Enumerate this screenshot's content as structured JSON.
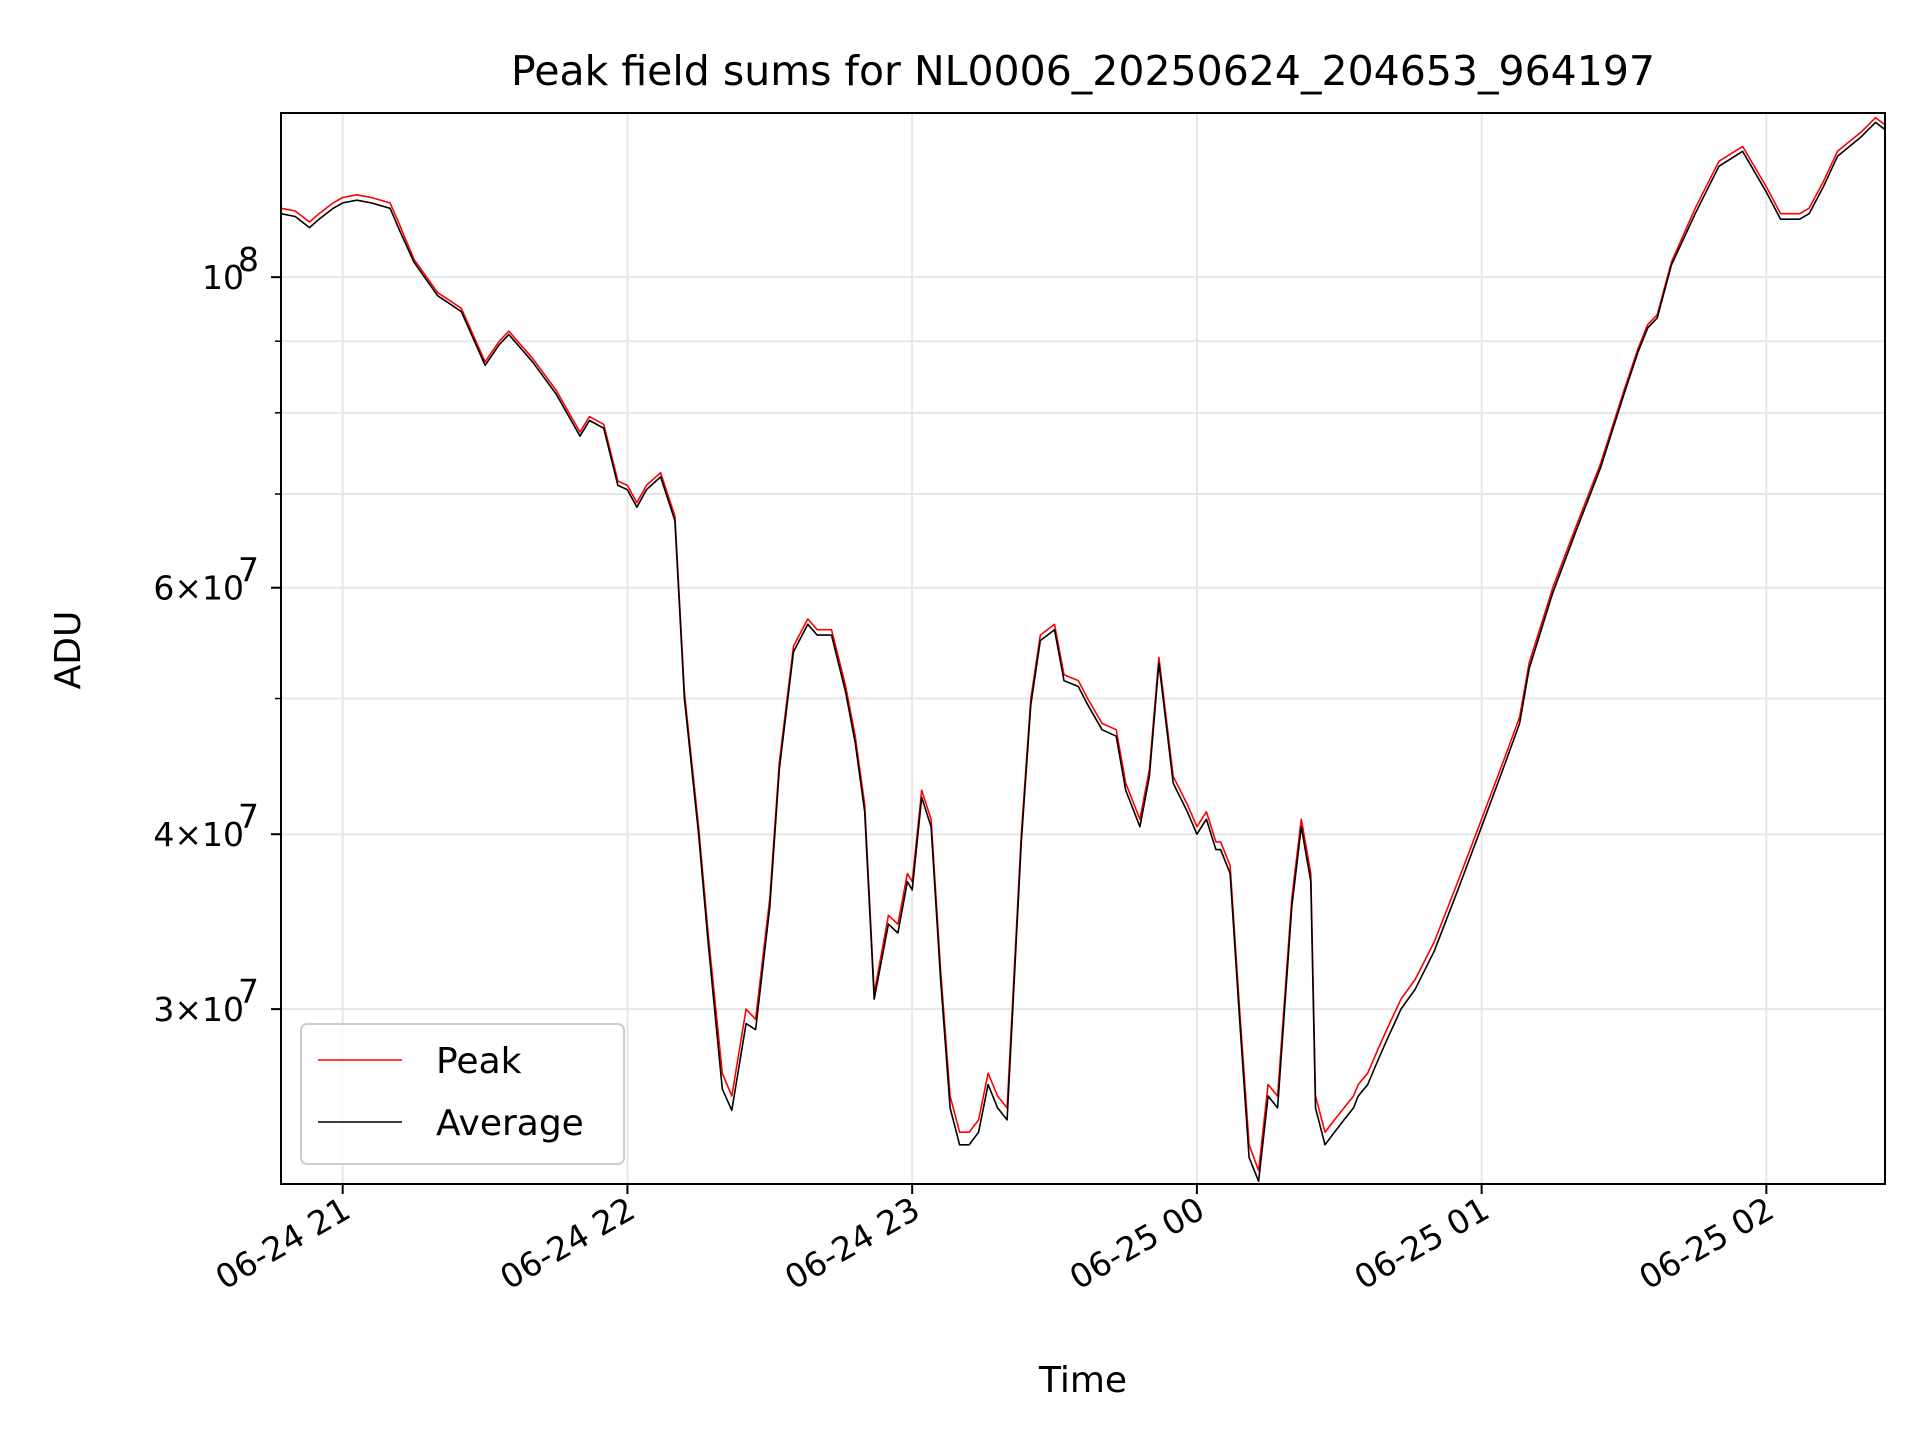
{
  "chart_data": {
    "type": "line",
    "title": "Peak field sums for NL0006_20250624_204653_964197",
    "xlabel": "Time",
    "ylabel": "ADU",
    "y_scale": "log",
    "xlim": [
      "2025-06-24 20:47",
      "2025-06-25 02:25"
    ],
    "ylim": [
      22500000,
      131000000
    ],
    "x_ticks": [
      {
        "value": "2025-06-24 21:00",
        "label": "06-24 21"
      },
      {
        "value": "2025-06-24 22:00",
        "label": "06-24 22"
      },
      {
        "value": "2025-06-24 23:00",
        "label": "06-24 23"
      },
      {
        "value": "2025-06-25 00:00",
        "label": "06-25 00"
      },
      {
        "value": "2025-06-25 01:00",
        "label": "06-25 01"
      },
      {
        "value": "2025-06-25 02:00",
        "label": "06-25 02"
      }
    ],
    "y_major_ticks": [
      {
        "value": 30000000,
        "base": "3",
        "exp": "7"
      },
      {
        "value": 40000000,
        "base": "4",
        "exp": "7"
      },
      {
        "value": 60000000,
        "base": "6",
        "exp": "7"
      },
      {
        "value": 100000000,
        "base": "",
        "exp": "8"
      }
    ],
    "y_minor_ticks": [
      50000000,
      70000000,
      80000000,
      90000000
    ],
    "grid": true,
    "legend_position": "lower-left",
    "series": [
      {
        "name": "Peak",
        "color": "#ff0000",
        "x": [
          "2025-06-24 20:47",
          "2025-06-24 20:50",
          "2025-06-24 20:53",
          "2025-06-24 20:55",
          "2025-06-24 20:58",
          "2025-06-24 21:00",
          "2025-06-24 21:03",
          "2025-06-24 21:06",
          "2025-06-24 21:10",
          "2025-06-24 21:12",
          "2025-06-24 21:15",
          "2025-06-24 21:20",
          "2025-06-24 21:25",
          "2025-06-24 21:30",
          "2025-06-24 21:33",
          "2025-06-24 21:35",
          "2025-06-24 21:40",
          "2025-06-24 21:45",
          "2025-06-24 21:50",
          "2025-06-24 21:52",
          "2025-06-24 21:55",
          "2025-06-24 21:58",
          "2025-06-24 22:00",
          "2025-06-24 22:02",
          "2025-06-24 22:04",
          "2025-06-24 22:07",
          "2025-06-24 22:10",
          "2025-06-24 22:12",
          "2025-06-24 22:15",
          "2025-06-24 22:17",
          "2025-06-24 22:20",
          "2025-06-24 22:22",
          "2025-06-24 22:25",
          "2025-06-24 22:27",
          "2025-06-24 22:30",
          "2025-06-24 22:32",
          "2025-06-24 22:35",
          "2025-06-24 22:38",
          "2025-06-24 22:40",
          "2025-06-24 22:43",
          "2025-06-24 22:46",
          "2025-06-24 22:48",
          "2025-06-24 22:50",
          "2025-06-24 22:52",
          "2025-06-24 22:55",
          "2025-06-24 22:57",
          "2025-06-24 22:59",
          "2025-06-24 23:00",
          "2025-06-24 23:02",
          "2025-06-24 23:04",
          "2025-06-24 23:06",
          "2025-06-24 23:08",
          "2025-06-24 23:10",
          "2025-06-24 23:12",
          "2025-06-24 23:14",
          "2025-06-24 23:16",
          "2025-06-24 23:18",
          "2025-06-24 23:20",
          "2025-06-24 23:23",
          "2025-06-24 23:25",
          "2025-06-24 23:27",
          "2025-06-24 23:30",
          "2025-06-24 23:32",
          "2025-06-24 23:35",
          "2025-06-24 23:37",
          "2025-06-24 23:40",
          "2025-06-24 23:43",
          "2025-06-24 23:45",
          "2025-06-24 23:48",
          "2025-06-24 23:50",
          "2025-06-24 23:52",
          "2025-06-24 23:55",
          "2025-06-24 23:58",
          "2025-06-25 00:00",
          "2025-06-25 00:02",
          "2025-06-25 00:04",
          "2025-06-25 00:05",
          "2025-06-25 00:07",
          "2025-06-25 00:09",
          "2025-06-25 00:11",
          "2025-06-25 00:13",
          "2025-06-25 00:15",
          "2025-06-25 00:17",
          "2025-06-25 00:20",
          "2025-06-25 00:22",
          "2025-06-25 00:24",
          "2025-06-25 00:25",
          "2025-06-25 00:27",
          "2025-06-25 00:29",
          "2025-06-25 00:31",
          "2025-06-25 00:33",
          "2025-06-25 00:34",
          "2025-06-25 00:36",
          "2025-06-25 00:38",
          "2025-06-25 00:40",
          "2025-06-25 00:43",
          "2025-06-25 00:46",
          "2025-06-25 00:50",
          "2025-06-25 00:55",
          "2025-06-25 01:00",
          "2025-06-25 01:05",
          "2025-06-25 01:08",
          "2025-06-25 01:10",
          "2025-06-25 01:15",
          "2025-06-25 01:20",
          "2025-06-25 01:25",
          "2025-06-25 01:30",
          "2025-06-25 01:33",
          "2025-06-25 01:35",
          "2025-06-25 01:37",
          "2025-06-25 01:40",
          "2025-06-25 01:45",
          "2025-06-25 01:50",
          "2025-06-25 01:55",
          "2025-06-25 02:00",
          "2025-06-25 02:03",
          "2025-06-25 02:07",
          "2025-06-25 02:09",
          "2025-06-25 02:12",
          "2025-06-25 02:15",
          "2025-06-25 02:20",
          "2025-06-25 02:23",
          "2025-06-25 02:25"
        ],
        "y": [
          112000000,
          111500000,
          109500000,
          111000000,
          113000000,
          114000000,
          114500000,
          114000000,
          113000000,
          109000000,
          103000000,
          97500000,
          95000000,
          87000000,
          90000000,
          91500000,
          87500000,
          83000000,
          77500000,
          79500000,
          78500000,
          71500000,
          71000000,
          69000000,
          71000000,
          72500000,
          67500000,
          50500000,
          40500000,
          34000000,
          27000000,
          26000000,
          30000000,
          29500000,
          36000000,
          45000000,
          54500000,
          57000000,
          56000000,
          56000000,
          51000000,
          47000000,
          42000000,
          30800000,
          35000000,
          34500000,
          37500000,
          37000000,
          43000000,
          41000000,
          32000000,
          26000000,
          24500000,
          24500000,
          25000000,
          27000000,
          26000000,
          25500000,
          40000000,
          50000000,
          55500000,
          56500000,
          52000000,
          51500000,
          50000000,
          48000000,
          47500000,
          43500000,
          41000000,
          44500000,
          53500000,
          44000000,
          42000000,
          40500000,
          41500000,
          39500000,
          39500000,
          38000000,
          30000000,
          24000000,
          23000000,
          26500000,
          26000000,
          36000000,
          41000000,
          37500000,
          26000000,
          24500000,
          25000000,
          25500000,
          26000000,
          26500000,
          27000000,
          28000000,
          29000000,
          30500000,
          31500000,
          33500000,
          37000000,
          41000000,
          45500000,
          48500000,
          53000000,
          60000000,
          66500000,
          73500000,
          83000000,
          89000000,
          92500000,
          94000000,
          102500000,
          112000000,
          121000000,
          124000000,
          116000000,
          111000000,
          111000000,
          112000000,
          117000000,
          123000000,
          127000000,
          130000000,
          128500000
        ]
      },
      {
        "name": "Average",
        "color": "#000000",
        "x": [
          "2025-06-24 20:47",
          "2025-06-24 20:50",
          "2025-06-24 20:53",
          "2025-06-24 20:55",
          "2025-06-24 20:58",
          "2025-06-24 21:00",
          "2025-06-24 21:03",
          "2025-06-24 21:06",
          "2025-06-24 21:10",
          "2025-06-24 21:12",
          "2025-06-24 21:15",
          "2025-06-24 21:20",
          "2025-06-24 21:25",
          "2025-06-24 21:30",
          "2025-06-24 21:33",
          "2025-06-24 21:35",
          "2025-06-24 21:40",
          "2025-06-24 21:45",
          "2025-06-24 21:50",
          "2025-06-24 21:52",
          "2025-06-24 21:55",
          "2025-06-24 21:58",
          "2025-06-24 22:00",
          "2025-06-24 22:02",
          "2025-06-24 22:04",
          "2025-06-24 22:07",
          "2025-06-24 22:10",
          "2025-06-24 22:12",
          "2025-06-24 22:15",
          "2025-06-24 22:17",
          "2025-06-24 22:20",
          "2025-06-24 22:22",
          "2025-06-24 22:25",
          "2025-06-24 22:27",
          "2025-06-24 22:30",
          "2025-06-24 22:32",
          "2025-06-24 22:35",
          "2025-06-24 22:38",
          "2025-06-24 22:40",
          "2025-06-24 22:43",
          "2025-06-24 22:46",
          "2025-06-24 22:48",
          "2025-06-24 22:50",
          "2025-06-24 22:52",
          "2025-06-24 22:55",
          "2025-06-24 22:57",
          "2025-06-24 22:59",
          "2025-06-24 23:00",
          "2025-06-24 23:02",
          "2025-06-24 23:04",
          "2025-06-24 23:06",
          "2025-06-24 23:08",
          "2025-06-24 23:10",
          "2025-06-24 23:12",
          "2025-06-24 23:14",
          "2025-06-24 23:16",
          "2025-06-24 23:18",
          "2025-06-24 23:20",
          "2025-06-24 23:23",
          "2025-06-24 23:25",
          "2025-06-24 23:27",
          "2025-06-24 23:30",
          "2025-06-24 23:32",
          "2025-06-24 23:35",
          "2025-06-24 23:37",
          "2025-06-24 23:40",
          "2025-06-24 23:43",
          "2025-06-24 23:45",
          "2025-06-24 23:48",
          "2025-06-24 23:50",
          "2025-06-24 23:52",
          "2025-06-24 23:55",
          "2025-06-24 23:58",
          "2025-06-25 00:00",
          "2025-06-25 00:02",
          "2025-06-25 00:04",
          "2025-06-25 00:05",
          "2025-06-25 00:07",
          "2025-06-25 00:09",
          "2025-06-25 00:11",
          "2025-06-25 00:13",
          "2025-06-25 00:15",
          "2025-06-25 00:17",
          "2025-06-25 00:20",
          "2025-06-25 00:22",
          "2025-06-25 00:24",
          "2025-06-25 00:25",
          "2025-06-25 00:27",
          "2025-06-25 00:29",
          "2025-06-25 00:31",
          "2025-06-25 00:33",
          "2025-06-25 00:34",
          "2025-06-25 00:36",
          "2025-06-25 00:38",
          "2025-06-25 00:40",
          "2025-06-25 00:43",
          "2025-06-25 00:46",
          "2025-06-25 00:50",
          "2025-06-25 00:55",
          "2025-06-25 01:00",
          "2025-06-25 01:05",
          "2025-06-25 01:08",
          "2025-06-25 01:10",
          "2025-06-25 01:15",
          "2025-06-25 01:20",
          "2025-06-25 01:25",
          "2025-06-25 01:30",
          "2025-06-25 01:33",
          "2025-06-25 01:35",
          "2025-06-25 01:37",
          "2025-06-25 01:40",
          "2025-06-25 01:45",
          "2025-06-25 01:50",
          "2025-06-25 01:55",
          "2025-06-25 02:00",
          "2025-06-25 02:03",
          "2025-06-25 02:07",
          "2025-06-25 02:09",
          "2025-06-25 02:12",
          "2025-06-25 02:15",
          "2025-06-25 02:20",
          "2025-06-25 02:23",
          "2025-06-25 02:25"
        ],
        "y": [
          111000000,
          110500000,
          108500000,
          110000000,
          112000000,
          113000000,
          113500000,
          113000000,
          112000000,
          108000000,
          102500000,
          97000000,
          94500000,
          86500000,
          89500000,
          91000000,
          87000000,
          82500000,
          77000000,
          79000000,
          78000000,
          71000000,
          70500000,
          68500000,
          70500000,
          72000000,
          67000000,
          50000000,
          40000000,
          33500000,
          26300000,
          25400000,
          29300000,
          29000000,
          35500000,
          44500000,
          54000000,
          56500000,
          55500000,
          55500000,
          50500000,
          46500000,
          41500000,
          30500000,
          34500000,
          34000000,
          37000000,
          36500000,
          42500000,
          40500000,
          31500000,
          25500000,
          24000000,
          24000000,
          24500000,
          26500000,
          25500000,
          25000000,
          39500000,
          49500000,
          55000000,
          56000000,
          51500000,
          51000000,
          49500000,
          47500000,
          47000000,
          43000000,
          40500000,
          44000000,
          53000000,
          43500000,
          41500000,
          40000000,
          41000000,
          39000000,
          39000000,
          37500000,
          29500000,
          23500000,
          22600000,
          26000000,
          25500000,
          35500000,
          40500000,
          37000000,
          25500000,
          24000000,
          24500000,
          25000000,
          25500000,
          26000000,
          26500000,
          27500000,
          28500000,
          30000000,
          31000000,
          33000000,
          36500000,
          40500000,
          45000000,
          48000000,
          52500000,
          59500000,
          66000000,
          73000000,
          82500000,
          88500000,
          92000000,
          93500000,
          102000000,
          111000000,
          120000000,
          123000000,
          115000000,
          110000000,
          110000000,
          111000000,
          116000000,
          122000000,
          126000000,
          129000000,
          127500000
        ]
      }
    ]
  }
}
